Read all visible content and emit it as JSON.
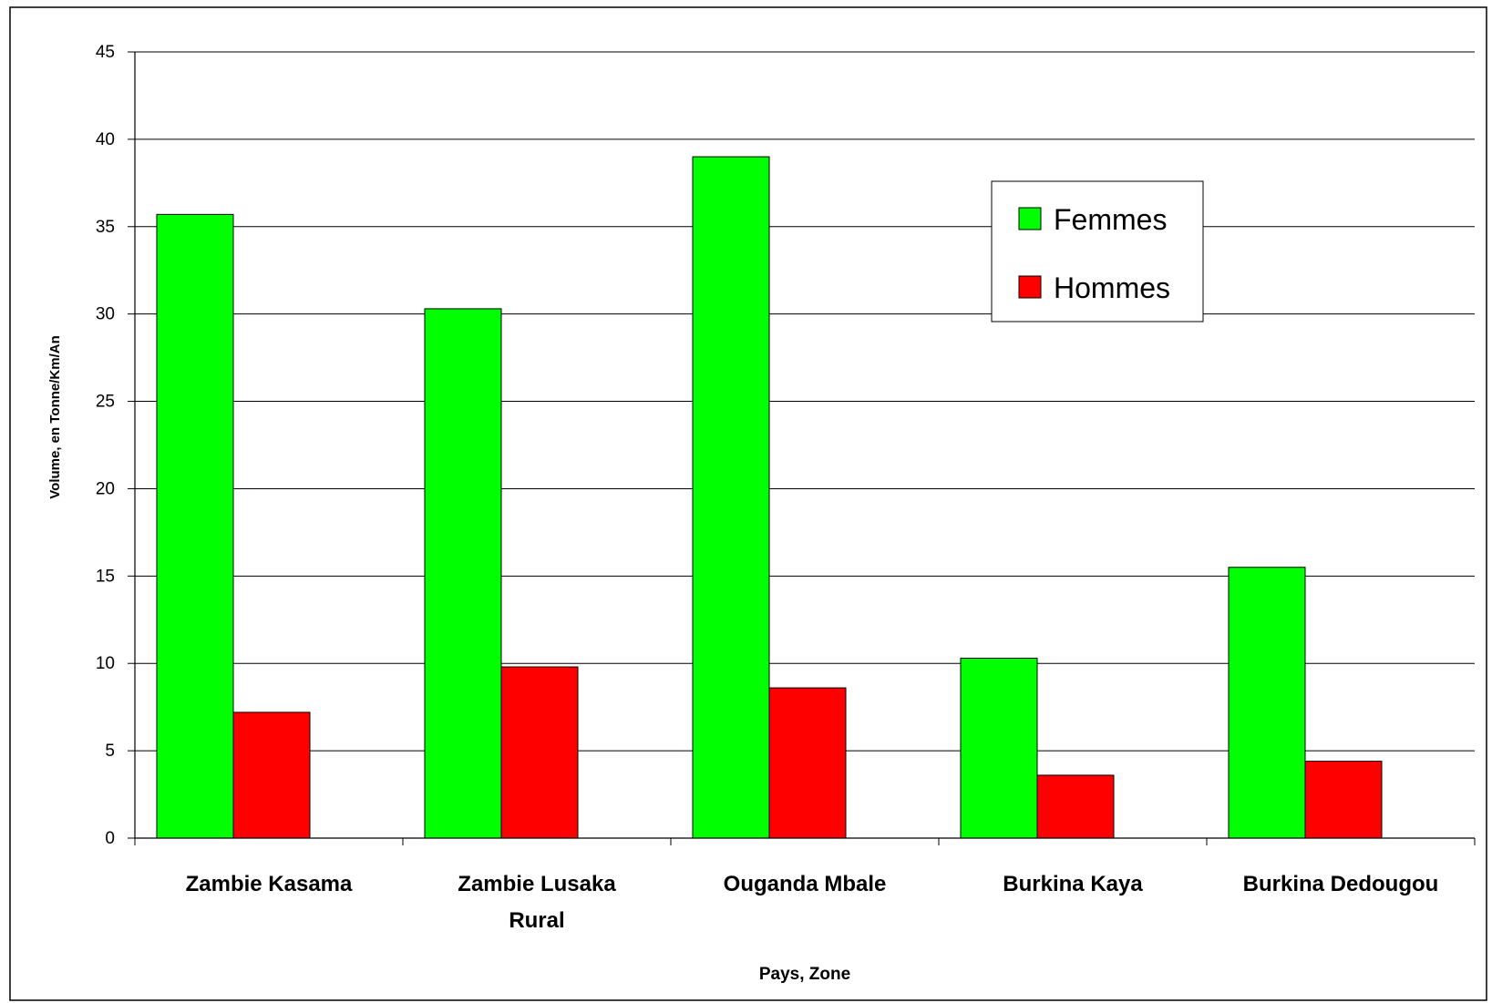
{
  "chart_data": {
    "type": "bar",
    "title": "",
    "xlabel": "Pays, Zone",
    "ylabel": "Volume, en Tonne/Km/An",
    "categories": [
      [
        "Zambie Kasama"
      ],
      [
        "Zambie Lusaka",
        "Rural"
      ],
      [
        "Ouganda Mbale"
      ],
      [
        "Burkina Kaya"
      ],
      [
        "Burkina Dedougou"
      ]
    ],
    "series": [
      {
        "name": "Femmes",
        "color": "#00ff00",
        "values": [
          35.7,
          30.3,
          39.0,
          10.3,
          15.5
        ]
      },
      {
        "name": "Hommes",
        "color": "#ff0000",
        "values": [
          7.2,
          9.8,
          8.6,
          3.6,
          4.4
        ]
      }
    ],
    "ylim": [
      0,
      45
    ],
    "yticks": [
      0,
      5,
      10,
      15,
      20,
      25,
      30,
      35,
      40,
      45
    ],
    "grid": true,
    "legend_position": "top-right"
  }
}
